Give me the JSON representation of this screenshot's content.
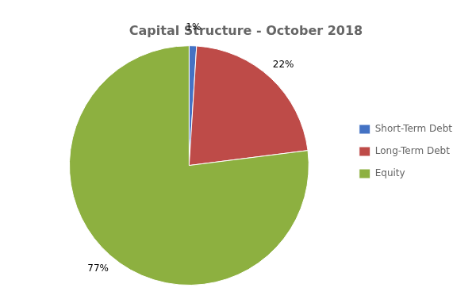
{
  "chart_data": {
    "type": "pie",
    "title": "Capital Structure - October 2018",
    "categories": [
      "Short-Term Debt",
      "Long-Term Debt",
      "Equity"
    ],
    "values": [
      1,
      22,
      77
    ],
    "value_labels": [
      "1%",
      "22%",
      "77%"
    ],
    "data_labels": true,
    "colors": [
      "#4472C4",
      "#BE4B48",
      "#8DB040"
    ],
    "legend": "right"
  }
}
